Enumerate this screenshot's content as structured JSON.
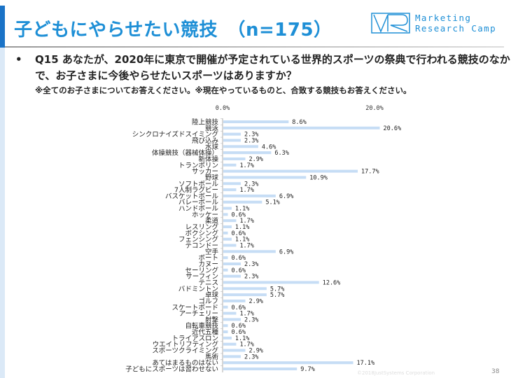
{
  "header": {
    "title": "子どもにやらせたい競技　（n=175）",
    "logo_text_line1": "Marketing",
    "logo_text_line2": "Research Camp",
    "logo_mark": "MR"
  },
  "question": {
    "bullet": "•",
    "text": "Q15  あなたが、2020年に東京で開催が予定されている世界的スポーツの祭典で行われる競技のなかで、お子さまに今後やらせたいスポーツはありますか？",
    "note": "※全てのお子さまについてお答えください。※現在やっているものと、合致する競技もお答えください。"
  },
  "footer": {
    "copyright": "©2018JustSystems Corporation",
    "page": "38"
  },
  "colors": {
    "accent": "#1e8fd6",
    "bar": "#c6ddf5"
  },
  "chart_data": {
    "type": "bar",
    "orientation": "horizontal",
    "xlim": [
      0,
      20
    ],
    "tick_labels": [
      "0.0%",
      "20.0%"
    ],
    "categories": [
      "陸上競技",
      "競泳",
      "シンクロナイズドスイミング",
      "飛び込み",
      "水球",
      "体操競技（器械体操）",
      "新体操",
      "トランポリン",
      "サッカー",
      "野球",
      "ソフトボール",
      "7人制ラグビー",
      "バスケットボール",
      "バレーボール",
      "ハンドボール",
      "ホッケー",
      "柔道",
      "レスリング",
      "ボクシング",
      "フェンシング",
      "テコンドー",
      "空手",
      "ボート",
      "カヌー",
      "セーリング",
      "サーフィン",
      "テニス",
      "バドミントン",
      "卓球",
      "ゴルフ",
      "スケートボード",
      "アーチェリー",
      "射撃",
      "自転車競技",
      "近代五種",
      "トライアスロン",
      "ウエイトリフティング",
      "スポーツクライミング",
      "馬術",
      "あてはまるものはない",
      "子どもにスポーツは習わせない"
    ],
    "values": [
      8.6,
      20.6,
      2.3,
      2.3,
      4.6,
      6.3,
      2.9,
      1.7,
      17.7,
      10.9,
      2.3,
      1.7,
      6.9,
      5.1,
      1.1,
      0.6,
      1.7,
      1.1,
      0.6,
      1.1,
      1.7,
      6.9,
      0.6,
      2.3,
      0.6,
      2.3,
      12.6,
      5.7,
      5.7,
      2.9,
      0.6,
      1.7,
      2.3,
      0.6,
      0.6,
      1.1,
      1.7,
      2.9,
      2.3,
      17.1,
      9.7
    ],
    "data_labels": [
      "8.6%",
      "20.6%",
      "2.3%",
      "2.3%",
      "4.6%",
      "6.3%",
      "2.9%",
      "1.7%",
      "17.7%",
      "10.9%",
      "2.3%",
      "1.7%",
      "6.9%",
      "5.1%",
      "1.1%",
      "0.6%",
      "1.7%",
      "1.1%",
      "0.6%",
      "1.1%",
      "1.7%",
      "6.9%",
      "0.6%",
      "2.3%",
      "0.6%",
      "2.3%",
      "12.6%",
      "5.7%",
      "5.7%",
      "2.9%",
      "0.6%",
      "1.7%",
      "2.3%",
      "0.6%",
      "0.6%",
      "1.1%",
      "1.7%",
      "2.9%",
      "2.3%",
      "17.1%",
      "9.7%"
    ]
  }
}
